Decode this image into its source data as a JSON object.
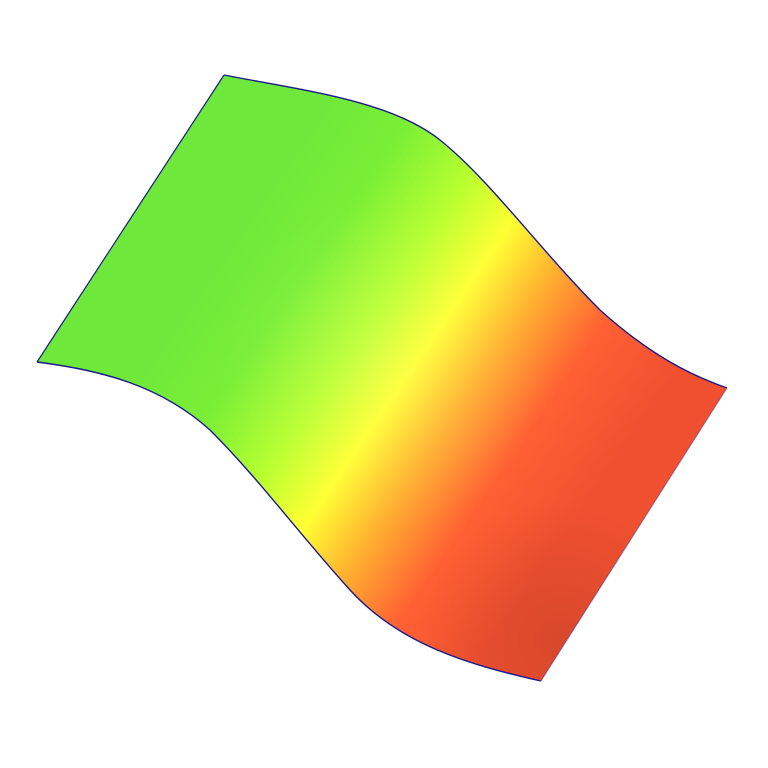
{
  "surface": {
    "shape": "s-curved-sheet",
    "outline_color": "#1a1a8c",
    "background_color": "#ffffff",
    "color_ramp": [
      {
        "stop": 0.0,
        "color": "#6ee83a"
      },
      {
        "stop": 0.18,
        "color": "#7aef36"
      },
      {
        "stop": 0.36,
        "color": "#b8ff30"
      },
      {
        "stop": 0.5,
        "color": "#ffff33"
      },
      {
        "stop": 0.64,
        "color": "#ffb030"
      },
      {
        "stop": 0.8,
        "color": "#ff6033"
      },
      {
        "stop": 1.0,
        "color": "#f05030"
      }
    ]
  }
}
